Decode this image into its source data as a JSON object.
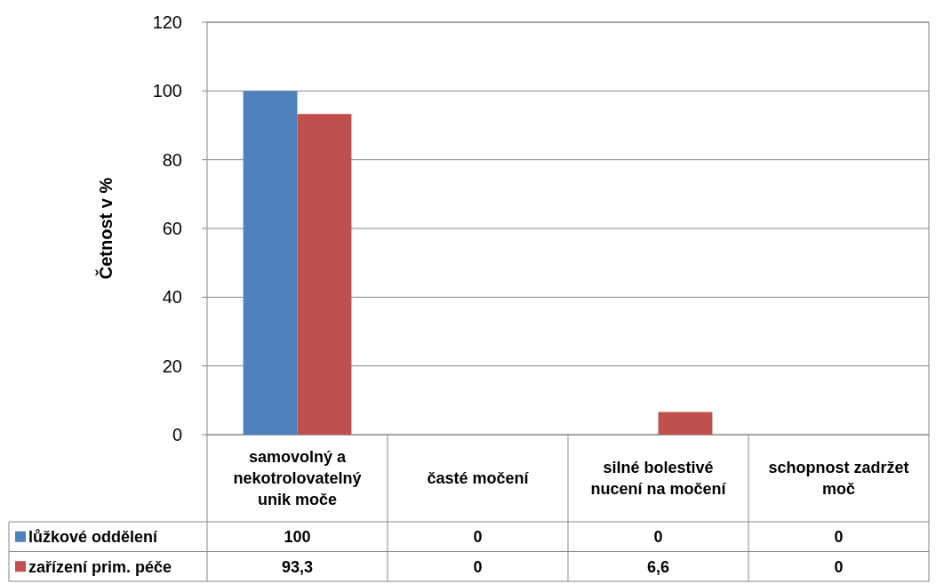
{
  "chart_data": {
    "type": "bar",
    "ylabel": "Četnost v %",
    "categories": [
      "samovolný a nekotrolovatelný unik moče",
      "časté močení",
      "silné bolestivé nucení na močení",
      "schopnost zadržet moč"
    ],
    "series": [
      {
        "name": "lůžkové oddělení",
        "color": "#4f81bd",
        "values": [
          100,
          0,
          0,
          0
        ],
        "value_labels": [
          "100",
          "0",
          "0",
          "0"
        ]
      },
      {
        "name": "zařízení prim. péče",
        "color": "#c0504d",
        "values": [
          93.3,
          0,
          6.6,
          0
        ],
        "value_labels": [
          "93,3",
          "0",
          "6,6",
          "0"
        ]
      }
    ],
    "ylim": [
      0,
      120
    ],
    "yticks": [
      0,
      20,
      40,
      60,
      80,
      100,
      120
    ],
    "grid": "y",
    "legend": "bottom left"
  }
}
